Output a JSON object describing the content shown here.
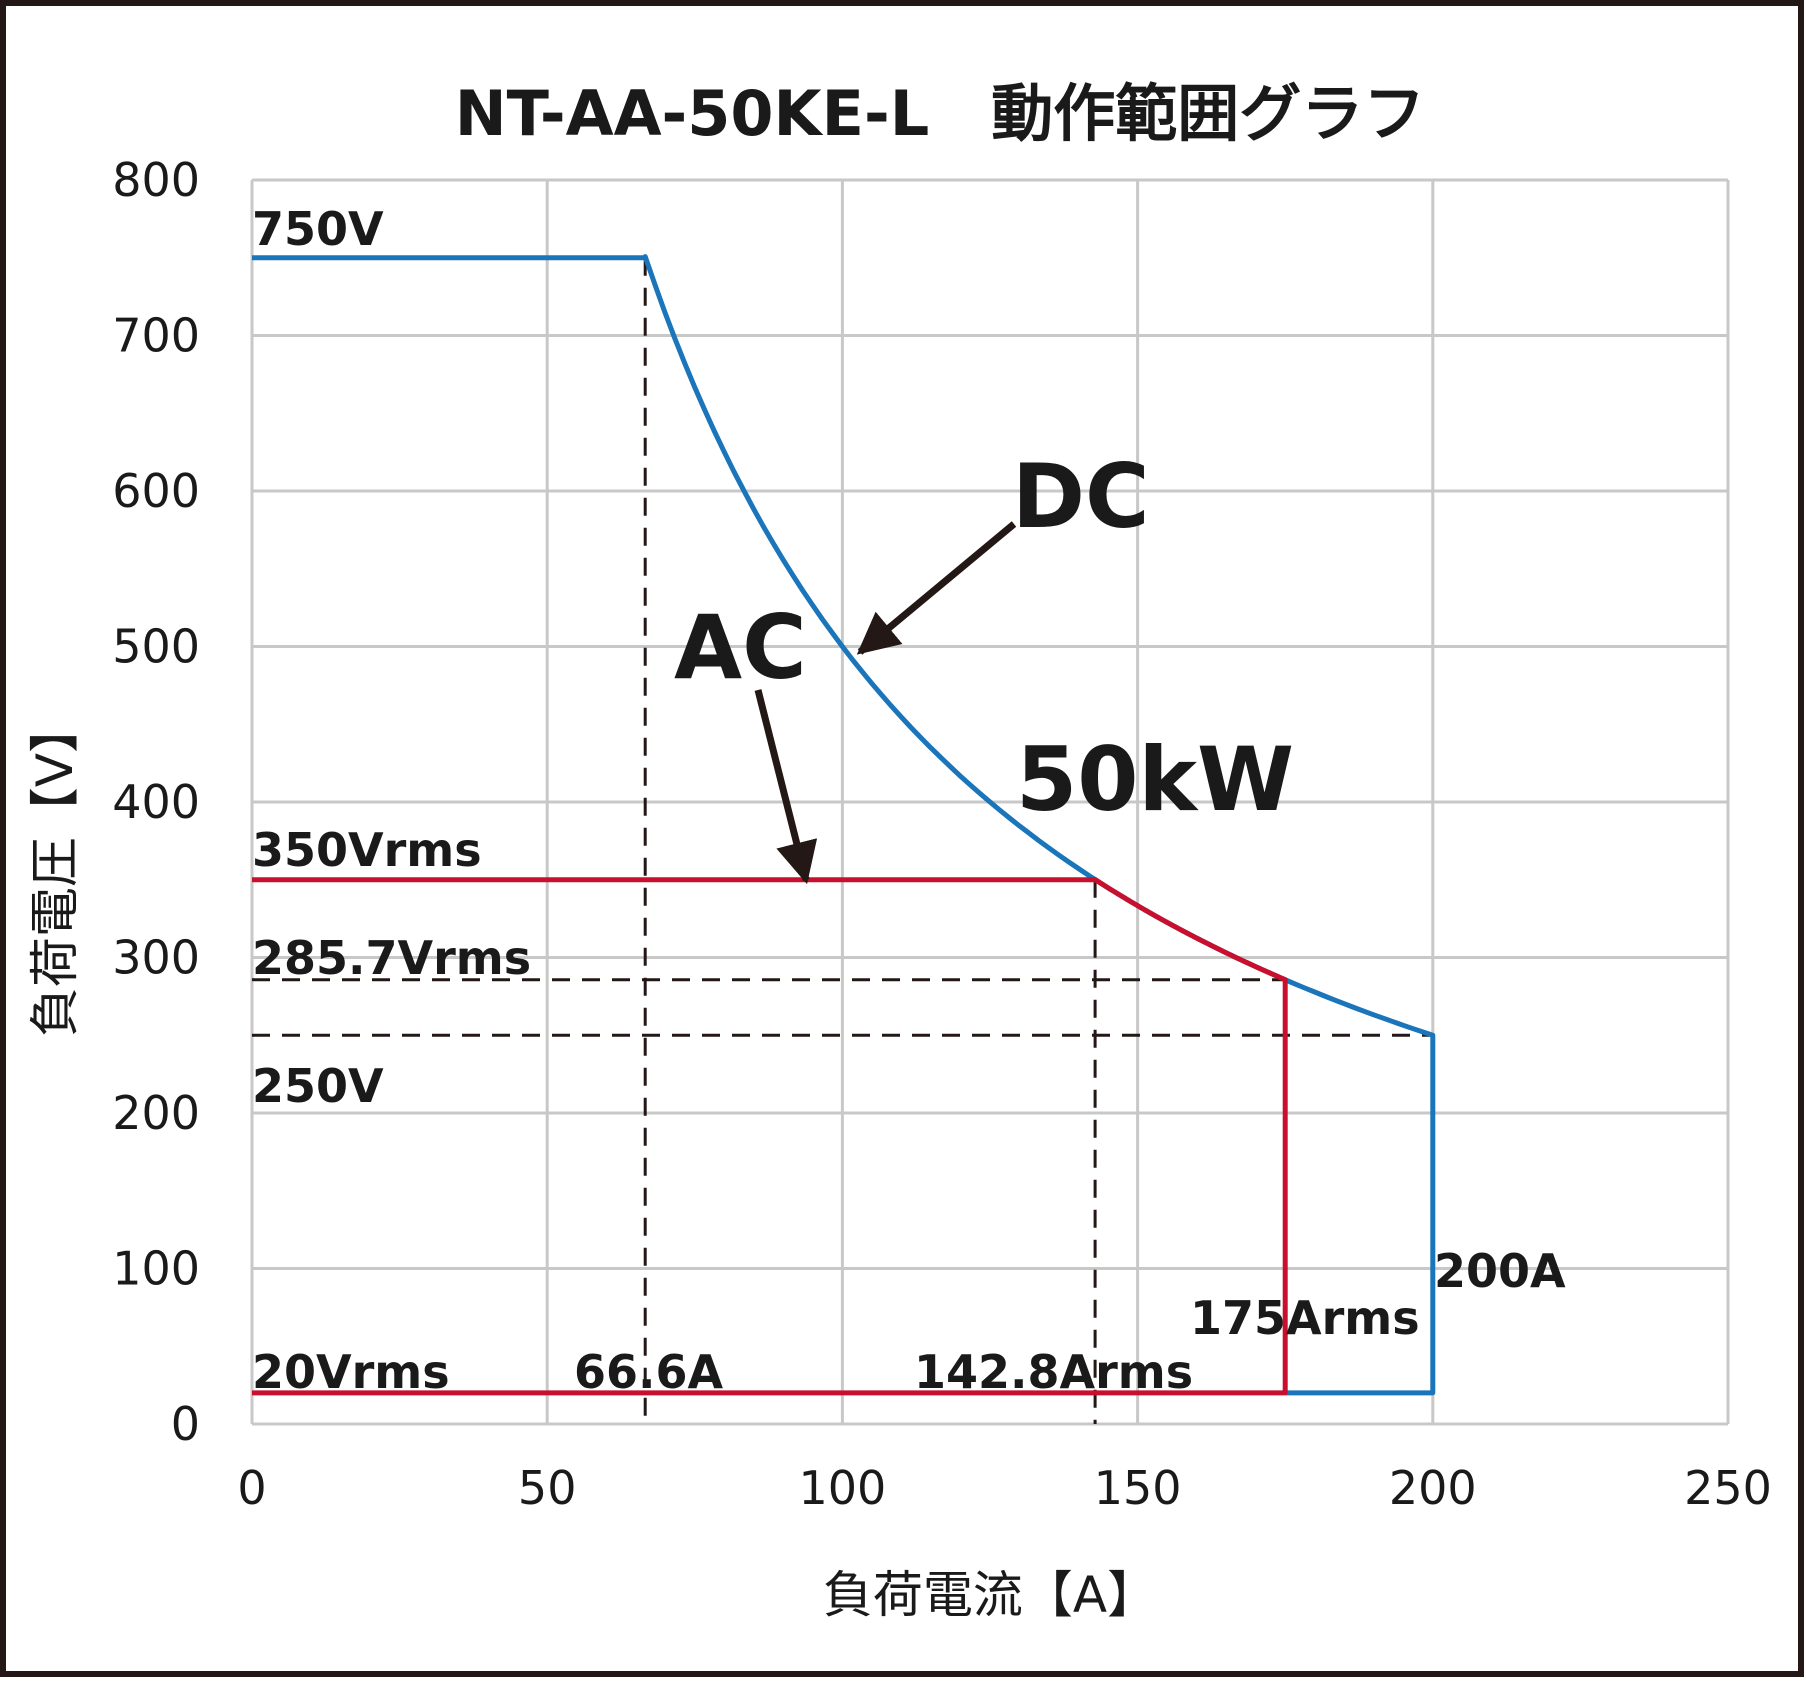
{
  "chart_data": {
    "type": "line",
    "title": "NT-AA-50KE-L　動作範囲グラフ",
    "xlabel": "負荷電流【A】",
    "ylabel": "負荷電圧【V】",
    "xlim": [
      0,
      250
    ],
    "ylim": [
      0,
      800
    ],
    "xticks": [
      "0",
      "50",
      "100",
      "150",
      "200",
      "250"
    ],
    "yticks": [
      "0",
      "100",
      "200",
      "300",
      "400",
      "500",
      "600",
      "700",
      "800"
    ],
    "grid": true,
    "series": [
      {
        "name": "DC",
        "color": "#1a75bb",
        "segments": [
          {
            "kind": "line",
            "points": [
              [
                0,
                750
              ],
              [
                66.6,
                750
              ]
            ]
          },
          {
            "kind": "power",
            "power_w": 50000,
            "i_from": 66.6,
            "i_to": 200
          },
          {
            "kind": "line",
            "points": [
              [
                200,
                250
              ],
              [
                200,
                20
              ],
              [
                175,
                20
              ]
            ]
          }
        ]
      },
      {
        "name": "AC",
        "color": "#c8102e",
        "segments": [
          {
            "kind": "line",
            "points": [
              [
                0,
                350
              ],
              [
                142.8,
                350
              ]
            ]
          },
          {
            "kind": "power",
            "power_w": 50000,
            "i_from": 142.8,
            "i_to": 175
          },
          {
            "kind": "line",
            "points": [
              [
                175,
                285.7
              ],
              [
                175,
                20
              ],
              [
                0,
                20
              ]
            ]
          }
        ]
      }
    ],
    "reference_lines": [
      {
        "points": [
          [
            66.6,
            750
          ],
          [
            66.6,
            0
          ]
        ]
      },
      {
        "points": [
          [
            142.8,
            350
          ],
          [
            142.8,
            0
          ]
        ]
      },
      {
        "points": [
          [
            0,
            285.7
          ],
          [
            175,
            285.7
          ]
        ]
      },
      {
        "points": [
          [
            0,
            250
          ],
          [
            200,
            250
          ]
        ]
      }
    ],
    "annotations": {
      "v750": "750V",
      "v350": "350Vrms",
      "v285": "285.7Vrms",
      "v250": "250V",
      "v20": "20Vrms",
      "a66": "66.6A",
      "a142": "142.8Arms",
      "a175": "175Arms",
      "a200": "200A",
      "dc": "DC",
      "ac": "AC",
      "power": "50kW"
    }
  }
}
